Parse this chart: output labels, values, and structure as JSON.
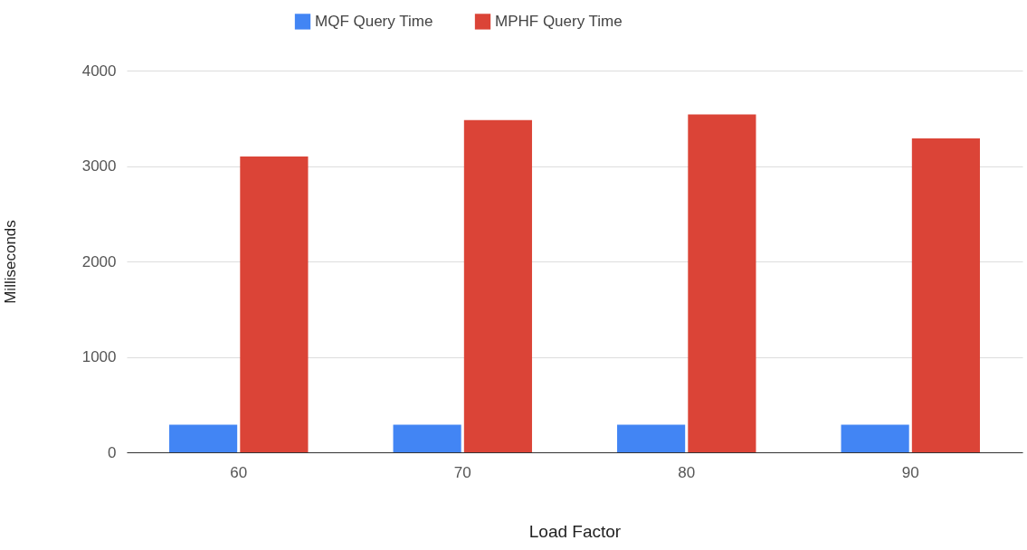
{
  "chart_data": {
    "type": "bar",
    "xlabel": "Load Factor",
    "ylabel": "Milliseconds",
    "categories": [
      "60",
      "70",
      "80",
      "90"
    ],
    "series": [
      {
        "name": "MQF  Query Time",
        "color": "#4285f4",
        "values": [
          290,
          290,
          290,
          290
        ]
      },
      {
        "name": "MPHF Query Time",
        "color": "#db4437",
        "values": [
          3100,
          3480,
          3540,
          3290
        ]
      }
    ],
    "ylim": [
      0,
      4000
    ],
    "yticks": [
      0,
      1000,
      2000,
      3000,
      4000
    ],
    "grid": "y",
    "legend": "top"
  }
}
